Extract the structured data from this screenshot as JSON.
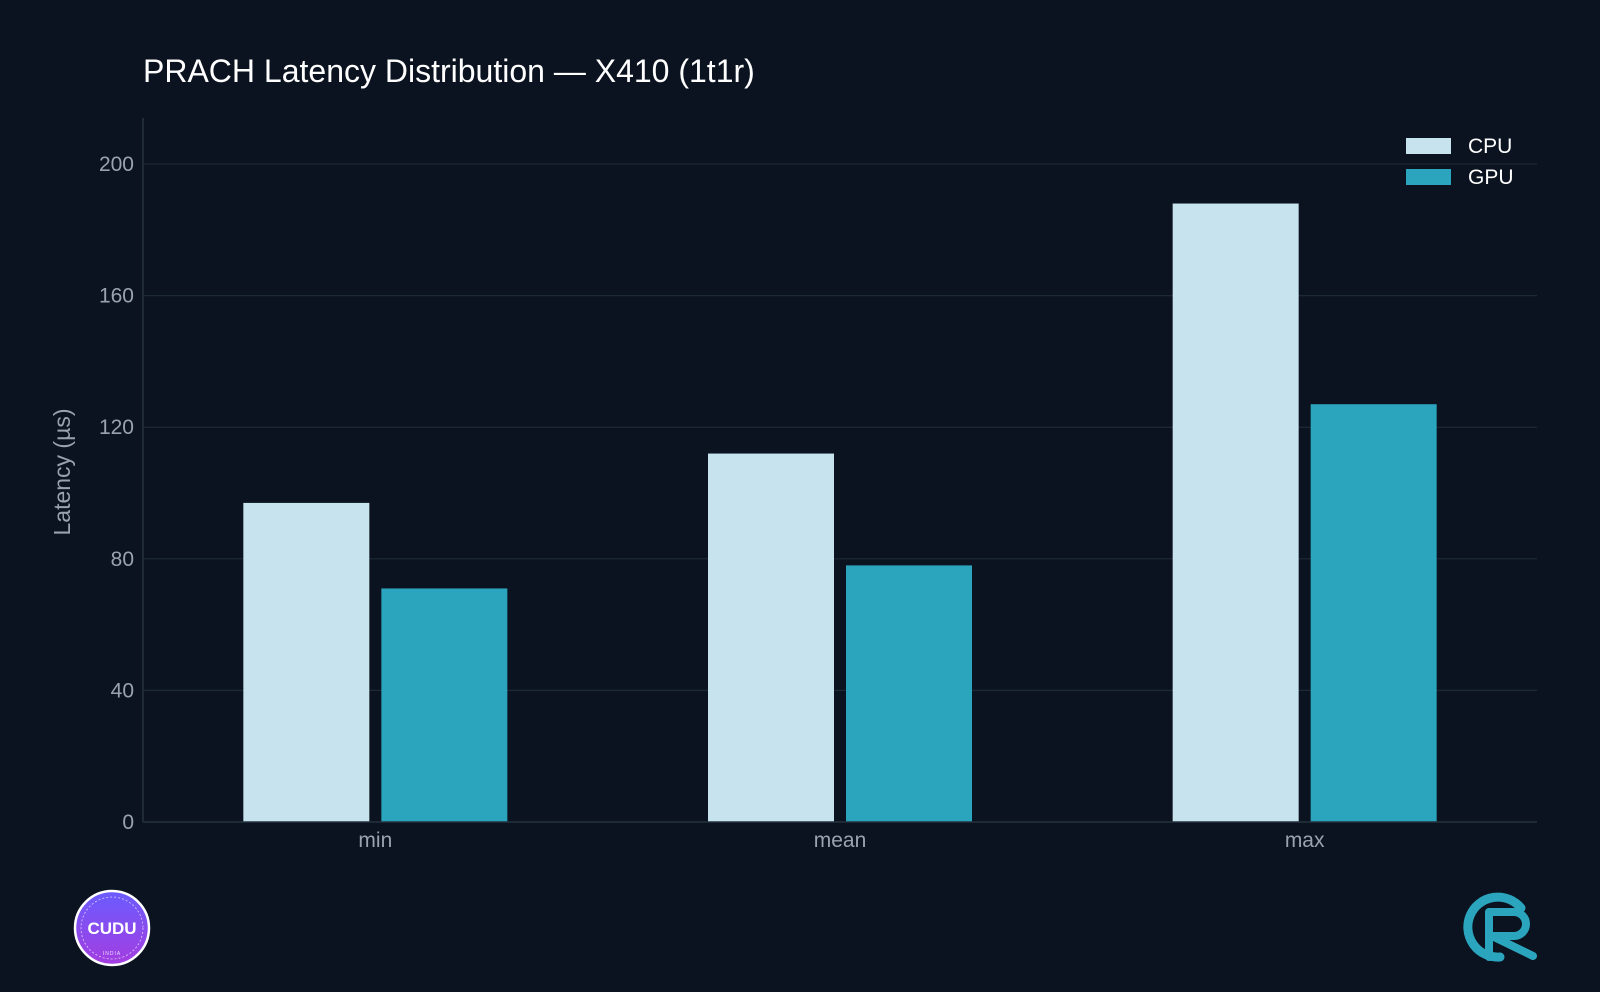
{
  "chart_data": {
    "type": "bar",
    "title": "PRACH Latency Distribution — X410 (1t1r)",
    "ylabel": "Latency (µs)",
    "xlabel": "",
    "categories": [
      "min",
      "mean",
      "max"
    ],
    "series": [
      {
        "name": "CPU",
        "color": "#c7e3ed",
        "values": [
          97,
          112,
          188
        ]
      },
      {
        "name": "GPU",
        "color": "#2ba5bd",
        "values": [
          71,
          78,
          127
        ]
      }
    ],
    "ylim": [
      0,
      214
    ],
    "yticks": [
      0,
      40,
      80,
      120,
      160,
      200
    ],
    "grid": true,
    "legend": "top-right"
  },
  "logos": {
    "left": {
      "text": "CUDU",
      "subtext": "INDIA",
      "icon": "cudu-logo-icon"
    },
    "right": {
      "icon": "r-logo-icon"
    }
  }
}
